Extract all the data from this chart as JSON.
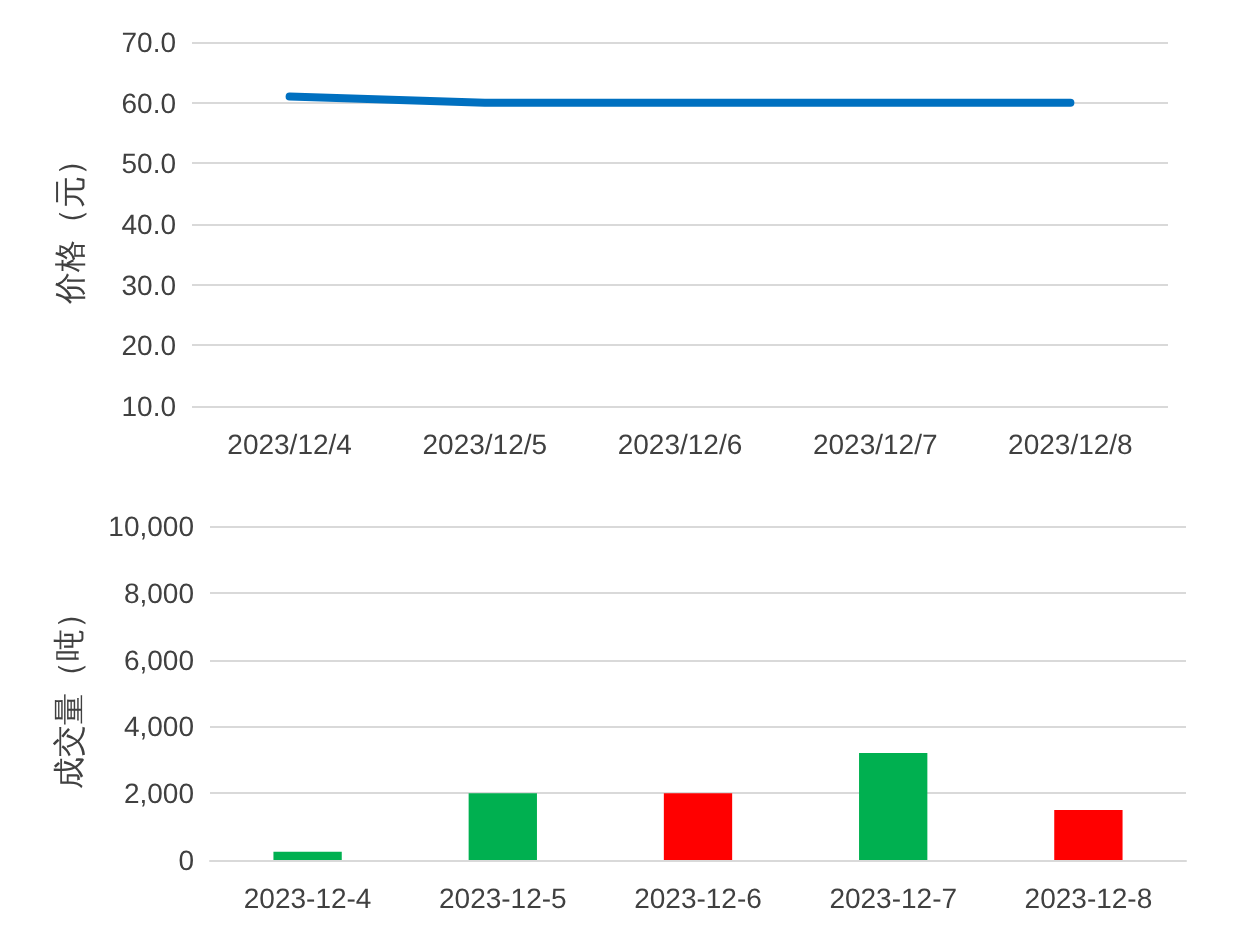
{
  "chart_data": [
    {
      "type": "line",
      "ylabel": "价格（元）",
      "categories": [
        "2023/12/4",
        "2023/12/5",
        "2023/12/6",
        "2023/12/7",
        "2023/12/8"
      ],
      "series": [
        {
          "color": "#0070c0",
          "values": [
            61.0,
            60.0,
            60.0,
            60.0,
            60.0
          ]
        }
      ],
      "ylim": [
        10,
        70
      ],
      "yticks": [
        {
          "value": 10,
          "label": "10.0"
        },
        {
          "value": 20,
          "label": "20.0"
        },
        {
          "value": 30,
          "label": "30.0"
        },
        {
          "value": 40,
          "label": "40.0"
        },
        {
          "value": 50,
          "label": "50.0"
        },
        {
          "value": 60,
          "label": "60.0"
        },
        {
          "value": 70,
          "label": "70.0"
        }
      ],
      "grid": "y",
      "marker": "none",
      "line_style": "solid"
    },
    {
      "type": "bar",
      "ylabel": "成交量（吨）",
      "categories": [
        "2023-12-4",
        "2023-12-5",
        "2023-12-6",
        "2023-12-7",
        "2023-12-8"
      ],
      "values": [
        250,
        2000,
        2000,
        3200,
        1500
      ],
      "colors": [
        "#00b050",
        "#00b050",
        "#ff0000",
        "#00b050",
        "#ff0000"
      ],
      "ylim": [
        0,
        10000
      ],
      "yticks": [
        0,
        {
          "value": 2000,
          "label": "2,000"
        },
        {
          "value": 4000,
          "label": "4,000"
        },
        {
          "value": 6000,
          "label": "6,000"
        },
        {
          "value": 8000,
          "label": "8,000"
        },
        {
          "value": 10000,
          "label": "10,000"
        }
      ],
      "grid": "y"
    }
  ]
}
